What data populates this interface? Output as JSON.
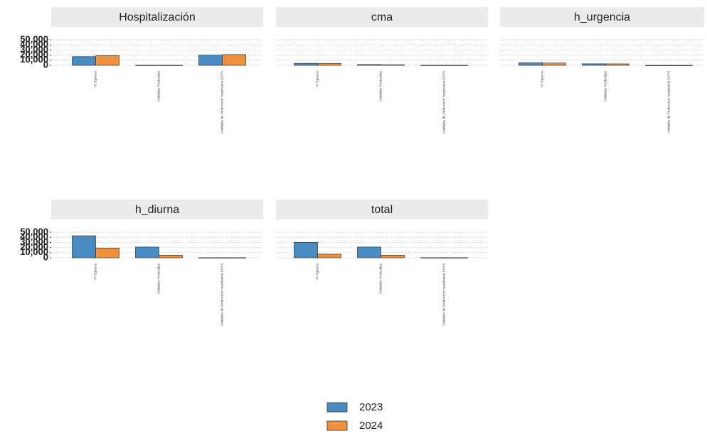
{
  "chart_data": [
    {
      "type": "bar",
      "title": "Hospitalización",
      "categories": [
        "Nº Egresos",
        "Unidades Producidas",
        "Unidades de Producción Hospitalaria (UPH)"
      ],
      "series": [
        {
          "name": "2023",
          "color": "#4a8cc2",
          "values": [
            17000,
            300,
            20000
          ]
        },
        {
          "name": "2024",
          "color": "#f0923d",
          "values": [
            19000,
            300,
            21000
          ]
        }
      ],
      "ylim": [
        0,
        50000
      ],
      "yticks": [
        0,
        {
          "value": 10000,
          "label": "10,000"
        },
        {
          "value": 20000,
          "label": "20,000"
        },
        {
          "value": 30000,
          "label": "30,000"
        },
        {
          "value": 40000,
          "label": "40,000"
        },
        {
          "value": 50000,
          "label": "50,000"
        }
      ],
      "grid": true
    },
    {
      "type": "bar",
      "title": "cma",
      "categories": [
        "Nº Egresos",
        "Unidades Producidas",
        "Unidades de Producción Hospitalaria (UPH)"
      ],
      "series": [
        {
          "name": "2023",
          "color": "#4a8cc2",
          "values": [
            4000,
            1500,
            200
          ]
        },
        {
          "name": "2024",
          "color": "#f0923d",
          "values": [
            3500,
            1200,
            200
          ]
        }
      ],
      "ylim": [
        0,
        50000
      ],
      "yticks": [
        0,
        {
          "value": 10000,
          "label": "10,000"
        },
        {
          "value": 20000,
          "label": "20,000"
        },
        {
          "value": 30000,
          "label": "30,000"
        },
        {
          "value": 40000,
          "label": "40,000"
        },
        {
          "value": 50000,
          "label": "50,000"
        }
      ],
      "grid": true
    },
    {
      "type": "bar",
      "title": "h_urgencia",
      "categories": [
        "Nº Egresos",
        "Unidades Producidas",
        "Unidades de Producción Hospitalaria (UPH)"
      ],
      "series": [
        {
          "name": "2023",
          "color": "#4a8cc2",
          "values": [
            5000,
            3000,
            100
          ]
        },
        {
          "name": "2024",
          "color": "#f0923d",
          "values": [
            4500,
            2800,
            100
          ]
        }
      ],
      "ylim": [
        0,
        50000
      ],
      "yticks": [
        0,
        {
          "value": 10000,
          "label": "10,000"
        },
        {
          "value": 20000,
          "label": "20,000"
        },
        {
          "value": 30000,
          "label": "30,000"
        },
        {
          "value": 40000,
          "label": "40,000"
        },
        {
          "value": 50000,
          "label": "50,000"
        }
      ],
      "grid": true
    },
    {
      "type": "bar",
      "title": "h_diurna",
      "categories": [
        "Nº Egresos",
        "Unidades Producidas",
        "Unidades de Producción Hospitalaria (UPH)"
      ],
      "series": [
        {
          "name": "2023",
          "color": "#4a8cc2",
          "values": [
            43000,
            21000,
            200
          ]
        },
        {
          "name": "2024",
          "color": "#f0923d",
          "values": [
            19000,
            5000,
            200
          ]
        }
      ],
      "ylim": [
        0,
        50000
      ],
      "yticks": [
        0,
        {
          "value": 10000,
          "label": "10,000"
        },
        {
          "value": 20000,
          "label": "20,000"
        },
        {
          "value": 30000,
          "label": "30,000"
        },
        {
          "value": 40000,
          "label": "40,000"
        },
        {
          "value": 50000,
          "label": "50,000"
        }
      ],
      "grid": true
    },
    {
      "type": "bar",
      "title": "total",
      "categories": [
        "Nº Egresos",
        "Unidades Producidas",
        "Unidades de Producción Hospitalaria (UPH)"
      ],
      "series": [
        {
          "name": "2023",
          "color": "#4a8cc2",
          "values": [
            30000,
            21000,
            300
          ]
        },
        {
          "name": "2024",
          "color": "#f0923d",
          "values": [
            7000,
            5000,
            300
          ]
        }
      ],
      "ylim": [
        0,
        50000
      ],
      "yticks": [
        0,
        {
          "value": 10000,
          "label": "10,000"
        },
        {
          "value": 20000,
          "label": "20,000"
        },
        {
          "value": 30000,
          "label": "30,000"
        },
        {
          "value": 40000,
          "label": "40,000"
        },
        {
          "value": 50000,
          "label": "50,000"
        }
      ],
      "grid": true
    }
  ]
}
